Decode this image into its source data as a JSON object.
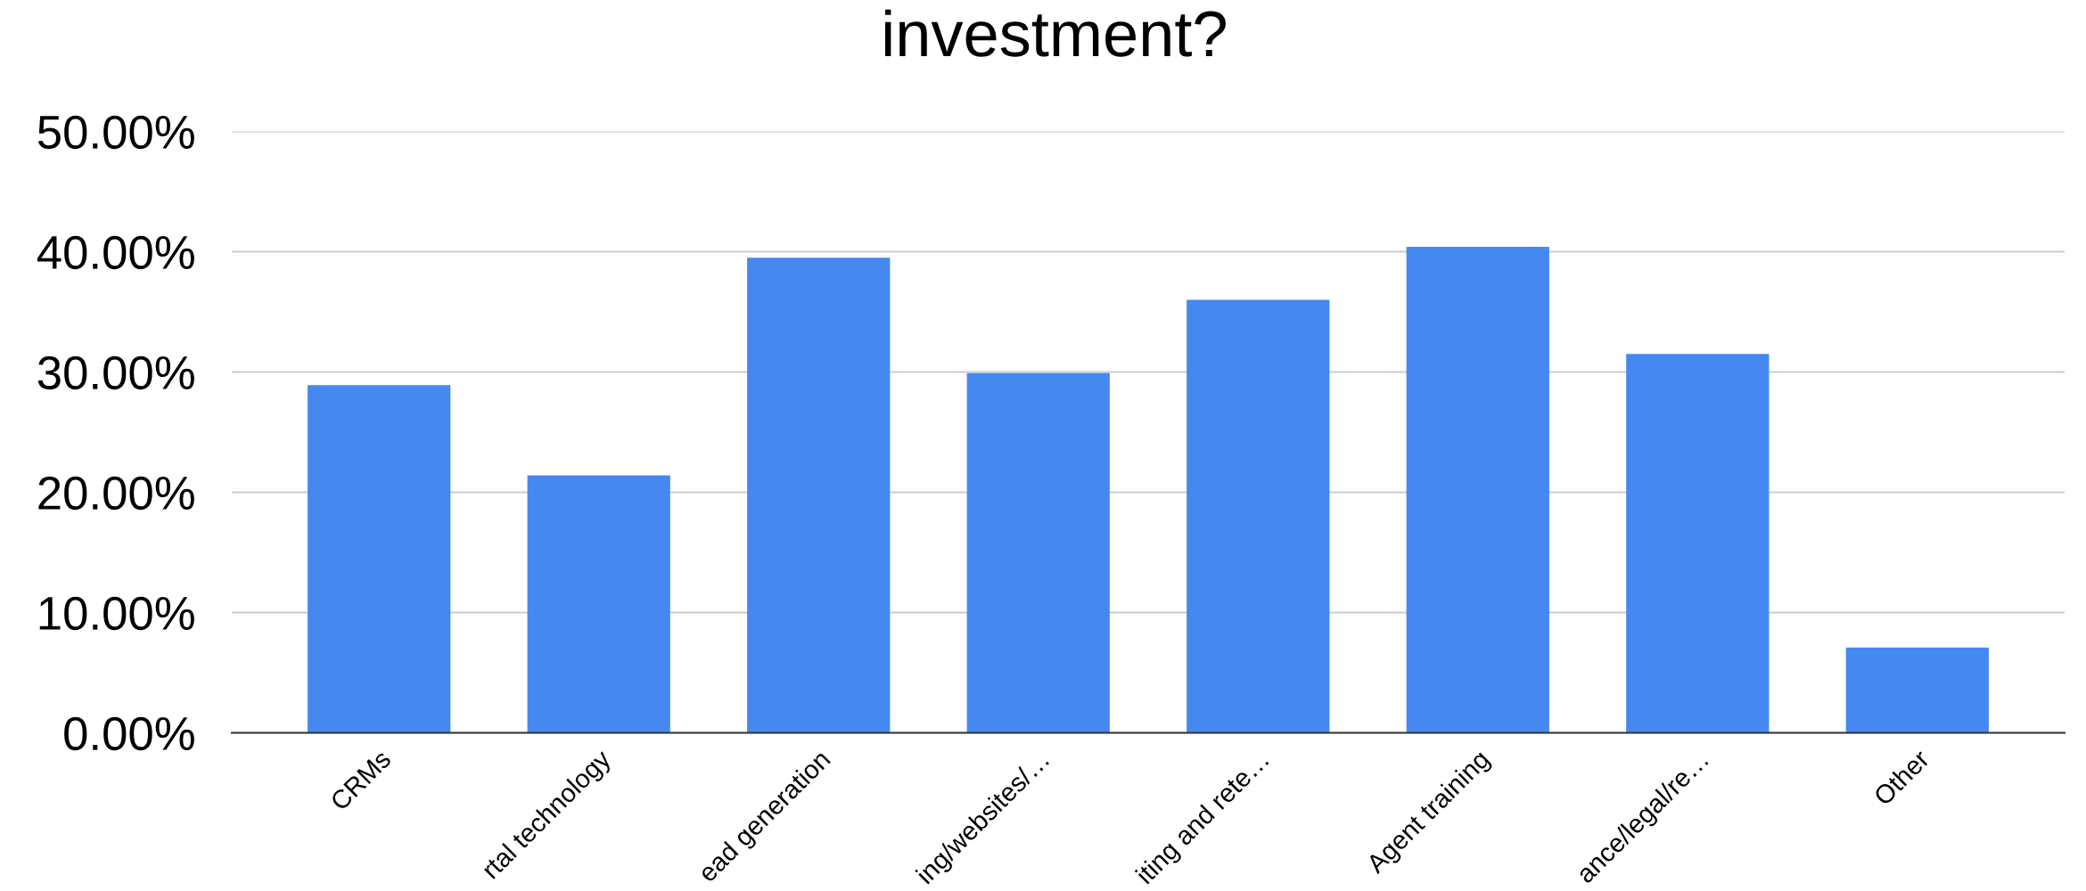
{
  "chart_data": {
    "type": "bar",
    "title": "investment?",
    "categories": [
      "CRMs",
      "rtal technology",
      "ead generation",
      "ing/websites/…",
      "iting and rete…",
      "Agent training",
      "ance/legal/re…",
      "Other"
    ],
    "values": [
      28.9,
      21.4,
      39.5,
      29.9,
      36.0,
      40.4,
      31.5,
      7.1
    ],
    "color": "#4589f0",
    "ylim": [
      0,
      50
    ],
    "yticks": [
      {
        "value": 0,
        "label": "0.00%"
      },
      {
        "value": 10,
        "label": "10.00%"
      },
      {
        "value": 20,
        "label": "20.00%"
      },
      {
        "value": 30,
        "label": "30.00%"
      },
      {
        "value": 40,
        "label": "40.00%"
      },
      {
        "value": 50,
        "label": "50.00%"
      }
    ],
    "grid": "y"
  }
}
